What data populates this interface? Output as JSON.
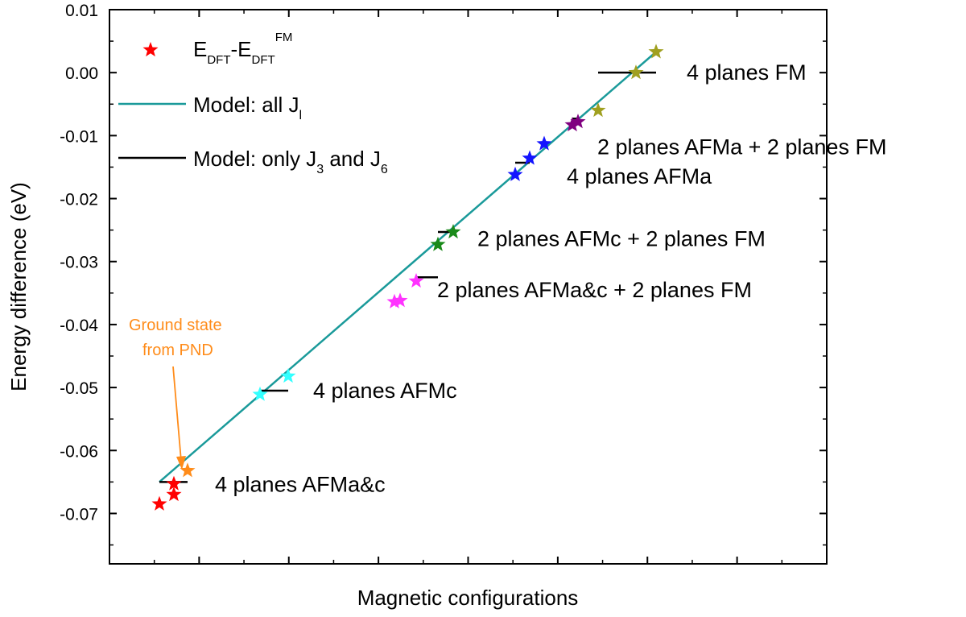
{
  "chart_data": {
    "type": "scatter",
    "title": "",
    "xlabel": "Magnetic configurations",
    "ylabel": "Energy difference (eV)",
    "ylim": [
      -0.078,
      0.01
    ],
    "yticks": [
      "0.01",
      "0.00",
      "-0.01",
      "-0.02",
      "-0.03",
      "-0.04",
      "-0.05",
      "-0.06",
      "-0.07"
    ],
    "ytick_values": [
      0.01,
      0.0,
      -0.01,
      -0.02,
      -0.03,
      -0.04,
      -0.05,
      -0.06,
      -0.07
    ],
    "x_tick_labels_shown": false,
    "grid": false,
    "legend_position": "top-left",
    "legend": {
      "dft": {
        "main": "E",
        "sub1": "DFT",
        "mid": "-E",
        "sub2": "DFT",
        "sup": "FM",
        "color": "#ff0000"
      },
      "model_all": {
        "text": "Model: all J",
        "sub": "l",
        "color": "#1a9a9a"
      },
      "model_only": {
        "text": "Model: only J",
        "sub1": "3",
        "mid": " and J",
        "sub2": "6",
        "color": "#000000"
      }
    },
    "series": [
      {
        "name": "EDFT-EDFT FM",
        "marker": "star",
        "points": [
          {
            "config": 0,
            "y": -0.0685,
            "color": "#ff0000"
          },
          {
            "config": 1,
            "y": -0.067,
            "color": "#ff0000"
          },
          {
            "config": 2,
            "y": -0.0653,
            "color": "#ff0000"
          },
          {
            "config": 3,
            "y": -0.0632,
            "color": "#ff8c1a"
          },
          {
            "config": 4,
            "y": -0.0511,
            "color": "#33ffff"
          },
          {
            "config": 5,
            "y": -0.0482,
            "color": "#33ffff"
          },
          {
            "config": 6,
            "y": -0.0364,
            "color": "#ff33ff"
          },
          {
            "config": 7,
            "y": -0.0362,
            "color": "#ff33ff"
          },
          {
            "config": 8,
            "y": -0.0331,
            "color": "#ff33ff"
          },
          {
            "config": 9,
            "y": -0.0273,
            "color": "#1a8a1a"
          },
          {
            "config": 10,
            "y": -0.0253,
            "color": "#1a8a1a"
          },
          {
            "config": 11,
            "y": -0.0162,
            "color": "#1414ff"
          },
          {
            "config": 12,
            "y": -0.0136,
            "color": "#1414ff"
          },
          {
            "config": 13,
            "y": -0.0113,
            "color": "#1414ff"
          },
          {
            "config": 14,
            "y": -0.0083,
            "color": "#800080"
          },
          {
            "config": 15,
            "y": -0.0078,
            "color": "#800080"
          },
          {
            "config": 16,
            "y": -0.006,
            "color": "#a0a020"
          },
          {
            "config": 17,
            "y": 0.0,
            "color": "#a0a020"
          },
          {
            "config": 18,
            "y": 0.0033,
            "color": "#a0a020"
          }
        ]
      },
      {
        "name": "Model: all J",
        "type": "line",
        "color": "#1a9a9a",
        "from": {
          "config": 0,
          "y": -0.065
        },
        "to": {
          "config": 18,
          "y": 0.0033
        }
      },
      {
        "name": "Model: only J3 and J6",
        "type": "segments",
        "color": "#000000",
        "segments": [
          {
            "from_config": 0,
            "to_config": 3,
            "y": -0.065
          },
          {
            "from_config": 4,
            "to_config": 5,
            "y": -0.0505
          },
          {
            "from_config": 8,
            "to_config": 9,
            "y": -0.0325
          },
          {
            "from_config": 9,
            "to_config": 10,
            "y": -0.0253
          },
          {
            "from_config": 11,
            "to_config": 12,
            "y": -0.0143
          },
          {
            "from_config": 14,
            "to_config": 15,
            "y": -0.0073
          },
          {
            "from_config": 16,
            "to_config": 18,
            "y": 0.0
          }
        ]
      }
    ],
    "labels": [
      {
        "text": "4 planes FM",
        "config": 18,
        "y": 0.0
      },
      {
        "text": "2 planes AFMa + 2 planes FM",
        "config": 16,
        "y": -0.0118
      },
      {
        "text": "4 planes AFMa",
        "config": 13,
        "y": -0.0165
      },
      {
        "text": "2 planes AFMc + 2 planes FM",
        "config": 10,
        "y": -0.0264
      },
      {
        "text": "2 planes AFMa&c + 2 planes FM",
        "config": 8,
        "y": -0.0345
      },
      {
        "text": "4 planes AFMc",
        "config": 5,
        "y": -0.0505
      },
      {
        "text": "4 planes AFMa&c",
        "config": 3,
        "y": -0.0654
      }
    ],
    "annotation": {
      "line1": "Ground state",
      "line2": "from PND",
      "color": "#ff8c1a",
      "target_config": 3
    }
  }
}
